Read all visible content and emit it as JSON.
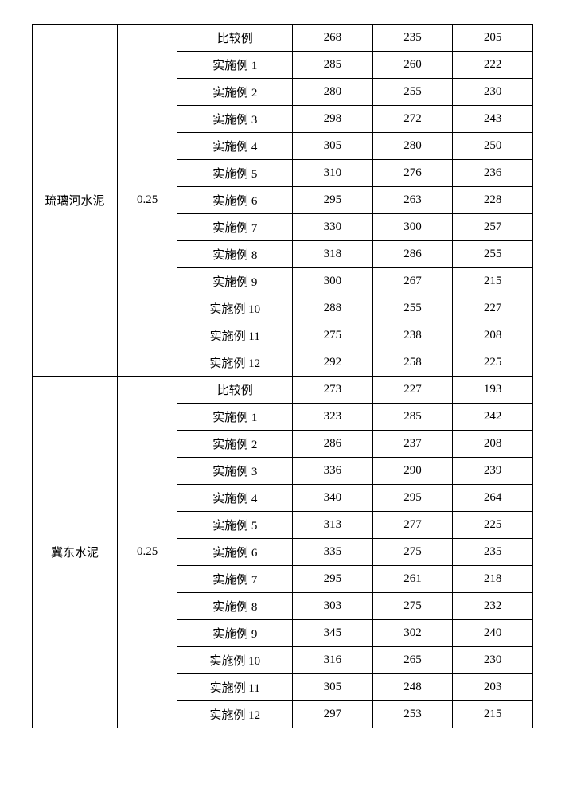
{
  "table": {
    "background_color": "#ffffff",
    "border_color": "#000000",
    "font_size": 15,
    "text_color": "#000000",
    "groups": [
      {
        "name": "琉璃河水泥",
        "ratio": "0.25",
        "rows": [
          {
            "label": "比较例",
            "v1": "268",
            "v2": "235",
            "v3": "205"
          },
          {
            "label": "实施例 1",
            "v1": "285",
            "v2": "260",
            "v3": "222"
          },
          {
            "label": "实施例 2",
            "v1": "280",
            "v2": "255",
            "v3": "230"
          },
          {
            "label": "实施例 3",
            "v1": "298",
            "v2": "272",
            "v3": "243"
          },
          {
            "label": "实施例 4",
            "v1": "305",
            "v2": "280",
            "v3": "250"
          },
          {
            "label": "实施例 5",
            "v1": "310",
            "v2": "276",
            "v3": "236"
          },
          {
            "label": "实施例 6",
            "v1": "295",
            "v2": "263",
            "v3": "228"
          },
          {
            "label": "实施例 7",
            "v1": "330",
            "v2": "300",
            "v3": "257"
          },
          {
            "label": "实施例 8",
            "v1": "318",
            "v2": "286",
            "v3": "255"
          },
          {
            "label": "实施例 9",
            "v1": "300",
            "v2": "267",
            "v3": "215"
          },
          {
            "label": "实施例 10",
            "v1": "288",
            "v2": "255",
            "v3": "227"
          },
          {
            "label": "实施例 11",
            "v1": "275",
            "v2": "238",
            "v3": "208"
          },
          {
            "label": "实施例 12",
            "v1": "292",
            "v2": "258",
            "v3": "225"
          }
        ]
      },
      {
        "name": "冀东水泥",
        "ratio": "0.25",
        "rows": [
          {
            "label": "比较例",
            "v1": "273",
            "v2": "227",
            "v3": "193"
          },
          {
            "label": "实施例 1",
            "v1": "323",
            "v2": "285",
            "v3": "242"
          },
          {
            "label": "实施例 2",
            "v1": "286",
            "v2": "237",
            "v3": "208"
          },
          {
            "label": "实施例 3",
            "v1": "336",
            "v2": "290",
            "v3": "239"
          },
          {
            "label": "实施例 4",
            "v1": "340",
            "v2": "295",
            "v3": "264"
          },
          {
            "label": "实施例 5",
            "v1": "313",
            "v2": "277",
            "v3": "225"
          },
          {
            "label": "实施例 6",
            "v1": "335",
            "v2": "275",
            "v3": "235"
          },
          {
            "label": "实施例 7",
            "v1": "295",
            "v2": "261",
            "v3": "218"
          },
          {
            "label": "实施例 8",
            "v1": "303",
            "v2": "275",
            "v3": "232"
          },
          {
            "label": "实施例 9",
            "v1": "345",
            "v2": "302",
            "v3": "240"
          },
          {
            "label": "实施例 10",
            "v1": "316",
            "v2": "265",
            "v3": "230"
          },
          {
            "label": "实施例 11",
            "v1": "305",
            "v2": "248",
            "v3": "203"
          },
          {
            "label": "实施例 12",
            "v1": "297",
            "v2": "253",
            "v3": "215"
          }
        ]
      }
    ]
  }
}
